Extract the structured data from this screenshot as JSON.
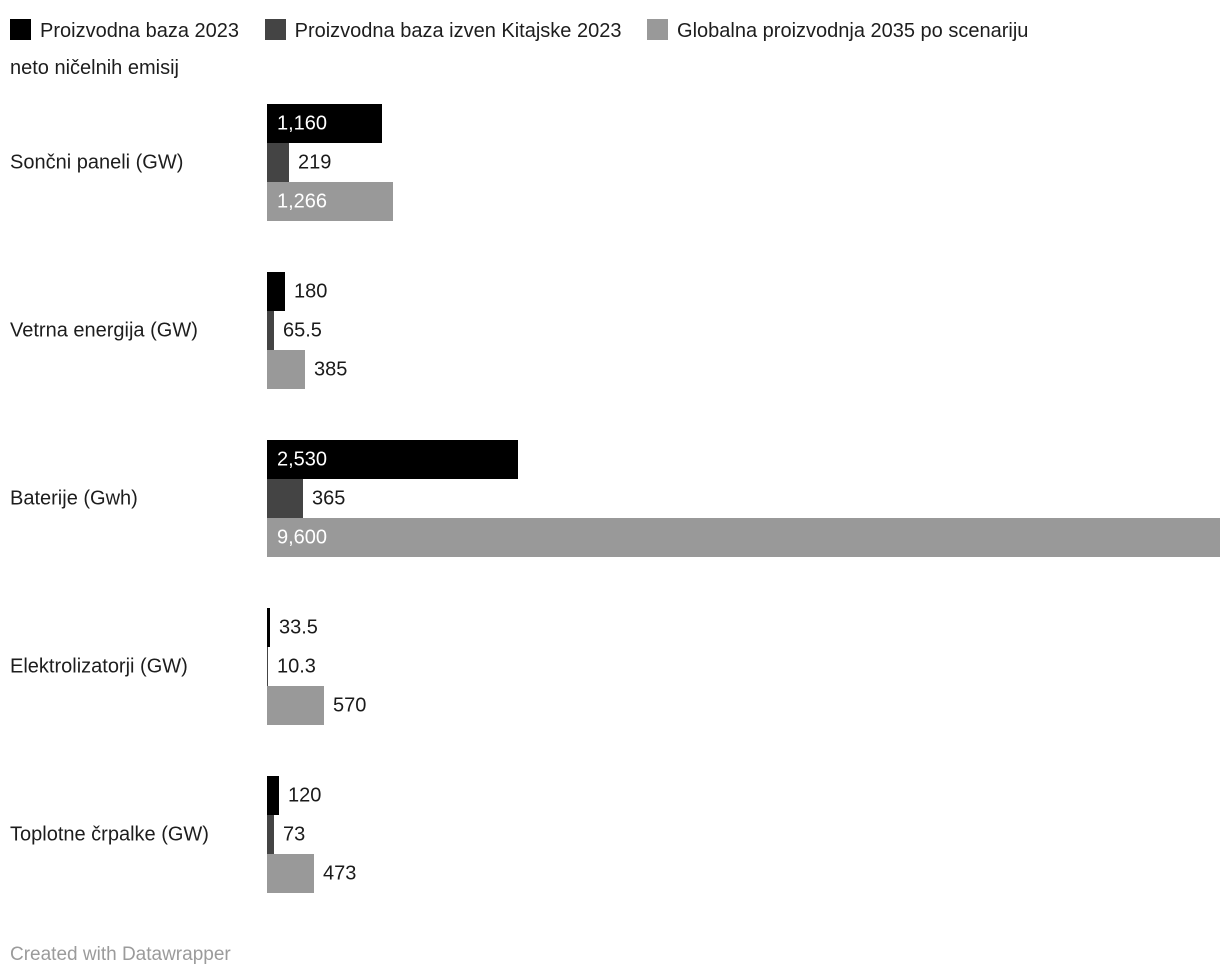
{
  "legend": {
    "items": [
      {
        "label": "Proizvodna baza 2023",
        "color": "#000000"
      },
      {
        "label": "Proizvodna baza izven Kitajske 2023",
        "color": "#444444"
      },
      {
        "label_line1": "Globalna proizvodnja 2035 po scenariju",
        "label_line2": "neto ničelnih emisij",
        "color": "#999999"
      }
    ]
  },
  "chart_data": {
    "type": "bar",
    "orientation": "horizontal",
    "title": "",
    "xlabel": "",
    "ylabel": "",
    "grid": false,
    "legend_position": "top",
    "xmax": 9600,
    "categories": [
      "Sončni paneli (GW)",
      "Vetrna energija (GW)",
      "Baterije (Gwh)",
      "Elektrolizatorji (GW)",
      "Toplotne črpalke (GW)"
    ],
    "series": [
      {
        "name": "Proizvodna baza 2023",
        "color": "#000000",
        "values": [
          1160,
          180,
          2530,
          33.5,
          120
        ],
        "labels": [
          "1,160",
          "180",
          "2,530",
          "33.5",
          "120"
        ]
      },
      {
        "name": "Proizvodna baza izven Kitajske 2023",
        "color": "#444444",
        "values": [
          219,
          65.5,
          365,
          10.3,
          73
        ],
        "labels": [
          "219",
          "65.5",
          "365",
          "10.3",
          "73"
        ]
      },
      {
        "name": "Globalna proizvodnja 2035 po scenariju neto ničelnih emisij",
        "color": "#999999",
        "values": [
          1266,
          385,
          9600,
          570,
          473
        ],
        "labels": [
          "1,266",
          "385",
          "9,600",
          "570",
          "473"
        ]
      }
    ]
  },
  "footer": {
    "credit": "Created with Datawrapper"
  }
}
